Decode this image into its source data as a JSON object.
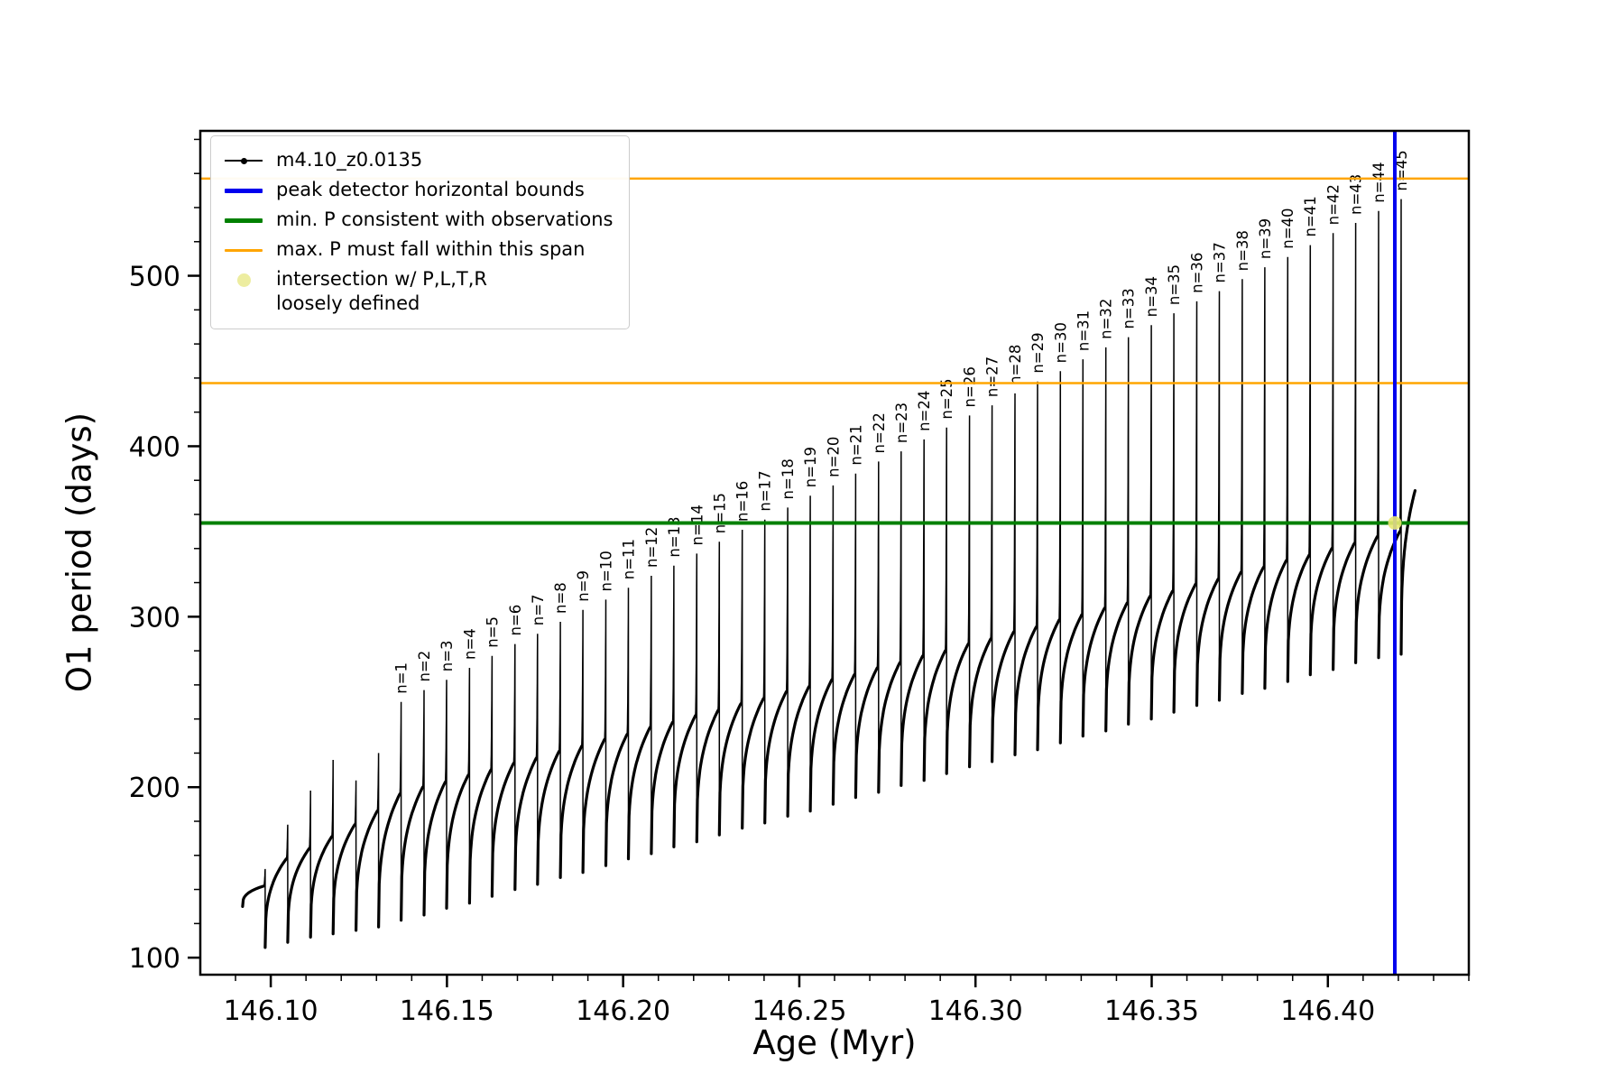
{
  "chart_data": {
    "type": "line",
    "title": "",
    "xlabel": "Age (Myr)",
    "ylabel": "O1 period (days)",
    "xlim": [
      146.08,
      146.44
    ],
    "ylim": [
      90,
      585
    ],
    "grid": false,
    "series_label": "m4.10_z0.0135",
    "series_color": "#000000",
    "x_ticks": [
      {
        "value": 146.1,
        "label": "146.10"
      },
      {
        "value": 146.15,
        "label": "146.15"
      },
      {
        "value": 146.2,
        "label": "146.20"
      },
      {
        "value": 146.25,
        "label": "146.25"
      },
      {
        "value": 146.3,
        "label": "146.30"
      },
      {
        "value": 146.35,
        "label": "146.35"
      },
      {
        "value": 146.4,
        "label": "146.40"
      }
    ],
    "x_minor_step": 0.01,
    "y_ticks": [
      {
        "value": 100,
        "label": "100"
      },
      {
        "value": 200,
        "label": "200"
      },
      {
        "value": 300,
        "label": "300"
      },
      {
        "value": 400,
        "label": "400"
      },
      {
        "value": 500,
        "label": "500"
      }
    ],
    "y_minor_step": 20,
    "hlines": [
      {
        "name": "min-P-consistent-with-observations",
        "y": 355,
        "color": "#008000",
        "width": 4
      },
      {
        "name": "max-P-span-lower",
        "y": 437,
        "color": "#ffa500",
        "width": 2.5
      },
      {
        "name": "max-P-span-upper",
        "y": 557,
        "color": "#ffa500",
        "width": 2.5
      }
    ],
    "vlines": [
      {
        "name": "peak-detector-horizontal-bound",
        "x": 146.419,
        "color": "#0000ee",
        "width": 4
      }
    ],
    "intersection_point": {
      "x": 146.419,
      "y": 355,
      "color": "#e8e873",
      "radius": 7.5
    },
    "teeth_fields": [
      "label",
      "x_start",
      "x_peak",
      "y_min",
      "y_arc_top",
      "y_peak"
    ],
    "teeth": [
      [
        null,
        146.092,
        146.0984,
        130,
        142,
        152
      ],
      [
        null,
        146.0984,
        146.1048,
        106,
        158,
        178
      ],
      [
        null,
        146.1048,
        146.1113,
        109,
        164,
        198
      ],
      [
        null,
        146.1113,
        146.1177,
        112,
        171,
        216
      ],
      [
        null,
        146.1177,
        146.1242,
        114,
        178,
        204
      ],
      [
        null,
        146.1242,
        146.1306,
        116,
        186,
        220
      ],
      [
        "n=1",
        146.1306,
        146.137,
        118,
        196,
        250
      ],
      [
        "n=2",
        146.137,
        146.1435,
        122,
        200,
        257
      ],
      [
        "n=3",
        146.1435,
        146.1499,
        125,
        203,
        263
      ],
      [
        "n=4",
        146.1499,
        146.1564,
        129,
        207,
        270
      ],
      [
        "n=5",
        146.1564,
        146.1628,
        132,
        210,
        277
      ],
      [
        "n=6",
        146.1628,
        146.1693,
        136,
        214,
        284
      ],
      [
        "n=7",
        146.1693,
        146.1757,
        140,
        217,
        290
      ],
      [
        "n=8",
        146.1757,
        146.1822,
        143,
        221,
        297
      ],
      [
        "n=9",
        146.1822,
        146.1886,
        147,
        224,
        304
      ],
      [
        "n=10",
        146.1886,
        146.1951,
        150,
        228,
        310
      ],
      [
        "n=11",
        146.1951,
        146.2015,
        154,
        231,
        317
      ],
      [
        "n=12",
        146.2015,
        146.208,
        158,
        235,
        324
      ],
      [
        "n=13",
        146.208,
        146.2144,
        161,
        238,
        330
      ],
      [
        "n=14",
        146.2144,
        146.2209,
        165,
        242,
        337
      ],
      [
        "n=15",
        146.2209,
        146.2273,
        168,
        245,
        344
      ],
      [
        "n=16",
        146.2273,
        146.2338,
        172,
        249,
        351
      ],
      [
        "n=17",
        146.2338,
        146.2402,
        176,
        252,
        357
      ],
      [
        "n=18",
        146.2402,
        146.2467,
        179,
        256,
        364
      ],
      [
        "n=19",
        146.2467,
        146.2531,
        183,
        259,
        371
      ],
      [
        "n=20",
        146.2531,
        146.2596,
        186,
        263,
        377
      ],
      [
        "n=21",
        146.2596,
        146.266,
        190,
        266,
        384
      ],
      [
        "n=22",
        146.266,
        146.2725,
        194,
        270,
        391
      ],
      [
        "n=23",
        146.2725,
        146.2789,
        197,
        273,
        397
      ],
      [
        "n=24",
        146.2789,
        146.2854,
        201,
        277,
        404
      ],
      [
        "n=25",
        146.2854,
        146.2918,
        204,
        280,
        411
      ],
      [
        "n=26",
        146.2918,
        146.2983,
        208,
        284,
        418
      ],
      [
        "n=27",
        146.2983,
        146.3047,
        212,
        287,
        424
      ],
      [
        "n=28",
        146.3047,
        146.3112,
        215,
        291,
        431
      ],
      [
        "n=29",
        146.3112,
        146.3176,
        219,
        294,
        438
      ],
      [
        "n=30",
        146.3176,
        146.3241,
        222,
        298,
        444
      ],
      [
        "n=31",
        146.3241,
        146.3305,
        226,
        301,
        451
      ],
      [
        "n=32",
        146.3305,
        146.337,
        230,
        305,
        458
      ],
      [
        "n=33",
        146.337,
        146.3434,
        233,
        308,
        464
      ],
      [
        "n=34",
        146.3434,
        146.3499,
        237,
        312,
        471
      ],
      [
        "n=35",
        146.3499,
        146.3563,
        240,
        315,
        478
      ],
      [
        "n=36",
        146.3563,
        146.3628,
        244,
        319,
        485
      ],
      [
        "n=37",
        146.3628,
        146.3692,
        248,
        322,
        491
      ],
      [
        "n=38",
        146.3692,
        146.3757,
        251,
        326,
        498
      ],
      [
        "n=39",
        146.3757,
        146.3821,
        255,
        329,
        505
      ],
      [
        "n=40",
        146.3821,
        146.3886,
        258,
        333,
        511
      ],
      [
        "n=41",
        146.3886,
        146.395,
        262,
        336,
        518
      ],
      [
        "n=42",
        146.395,
        146.4015,
        266,
        340,
        525
      ],
      [
        "n=43",
        146.4015,
        146.4079,
        269,
        343,
        531
      ],
      [
        "n=44",
        146.4079,
        146.4144,
        273,
        347,
        538
      ],
      [
        "n=45",
        146.4144,
        146.4208,
        276,
        350,
        545
      ],
      [
        null,
        146.4208,
        146.425,
        278,
        374,
        374
      ]
    ]
  },
  "legend": {
    "items": [
      {
        "label": "m4.10_z0.0135",
        "swatch": "line-dot",
        "color": "#000000",
        "thickness": 2
      },
      {
        "label": "peak detector horizontal bounds",
        "swatch": "line",
        "color": "#0000ee",
        "thickness": 5
      },
      {
        "label": "min. P consistent with observations",
        "swatch": "line",
        "color": "#008000",
        "thickness": 5
      },
      {
        "label": "max. P must fall within this span",
        "swatch": "line",
        "color": "#ffa500",
        "thickness": 3
      },
      {
        "label": "intersection w/ P,L,T,R\nloosely defined",
        "swatch": "dot",
        "color": "#ededa0",
        "thickness": 15
      }
    ]
  }
}
